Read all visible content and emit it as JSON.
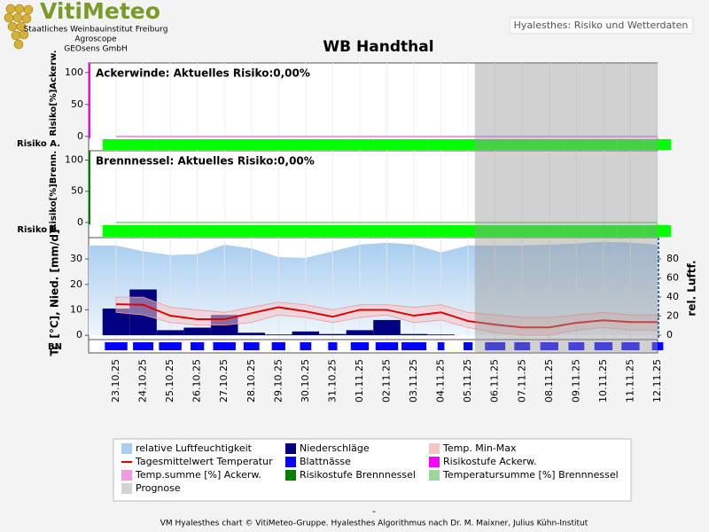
{
  "header": {
    "logo": "VitiMeteo",
    "institutes": [
      "Staatliches Weinbauinstitut Freiburg",
      "Agroscope",
      "GEOsens GmbH"
    ],
    "button": "Hyalesthes: Risiko und Wetterdaten",
    "title": "WB Handthal"
  },
  "chart_data": [
    {
      "type": "risk",
      "title": "Ackerwinde: Aktuelles Risiko:0,00%",
      "ylabel": "Risiko[%]Ackerw.",
      "strip_label": "Risiko A.",
      "strip_color": "#00ff00",
      "ylim": [
        -3,
        115
      ],
      "yticks": [
        0,
        50,
        100
      ],
      "series": [
        {
          "name": "Risikostufe Ackerw.",
          "color": "#ff00ff",
          "values": [
            0,
            0,
            0,
            0,
            0,
            0,
            0,
            0,
            0,
            0,
            0,
            0,
            0,
            0,
            0,
            0,
            0,
            0,
            0,
            0,
            0
          ]
        },
        {
          "name": "Temp.summe [%] Ackerw.",
          "color": "#f49ae0",
          "values": [
            0,
            0,
            0,
            0,
            0,
            0,
            0,
            0,
            0,
            0,
            0,
            0,
            0,
            0,
            0,
            0,
            0,
            0,
            0,
            0,
            0
          ]
        }
      ]
    },
    {
      "type": "risk",
      "title": "Brennnessel: Aktuelles Risiko:0,00%",
      "ylabel": "Risiko[%]Brenn.",
      "strip_label": "Risiko B.",
      "strip_color": "#00ff00",
      "ylim": [
        -3,
        115
      ],
      "yticks": [
        0,
        50,
        100
      ],
      "series": [
        {
          "name": "Risikostufe Brennnessel",
          "color": "#008000",
          "values": [
            0,
            0,
            0,
            0,
            0,
            0,
            0,
            0,
            0,
            0,
            0,
            0,
            0,
            0,
            0,
            0,
            0,
            0,
            0,
            0,
            0
          ]
        },
        {
          "name": "Temperatursumme [%] Brennnessel",
          "color": "#9cd89c",
          "values": [
            0,
            0,
            0,
            0,
            0,
            0,
            0,
            0,
            0,
            0,
            0,
            0,
            0,
            0,
            0,
            0,
            0,
            0,
            0,
            0,
            0
          ]
        }
      ]
    },
    {
      "type": "weather",
      "ylabel": "Tr. [°C], Nied. [mm/d]",
      "y2label": "rel. Luftf.",
      "strip_label": "BN",
      "categories": [
        "23.10.25",
        "24.10.25",
        "25.10.25",
        "26.10.25",
        "27.10.25",
        "28.10.25",
        "29.10.25",
        "30.10.25",
        "31.10.25",
        "01.11.25",
        "02.11.25",
        "03.11.25",
        "04.11.25",
        "05.11.25",
        "06.11.25",
        "07.11.25",
        "08.11.25",
        "09.11.25",
        "10.11.25",
        "11.11.25",
        "12.11.25"
      ],
      "ylim": [
        -1.7,
        38.4
      ],
      "yticks": [
        0,
        10,
        20,
        30
      ],
      "y2lim": [
        -4.7,
        102.3
      ],
      "y2ticks": [
        0,
        20,
        40,
        60,
        80
      ],
      "series": [
        {
          "name": "relative Luftfeuchtigkeit",
          "kind": "area",
          "axis": "y2",
          "color": "#a8cdf0",
          "values": [
            94,
            88,
            84,
            85,
            95,
            91,
            82,
            81,
            88,
            95,
            97,
            95,
            87,
            94,
            94,
            94,
            95,
            96,
            98,
            97,
            95
          ]
        },
        {
          "name": "Niederschläge",
          "kind": "bar",
          "color": "#000080",
          "values": [
            10.5,
            18,
            2,
            3,
            8,
            1,
            0.3,
            1.5,
            0.5,
            2,
            6,
            0.5,
            0.3,
            0,
            0,
            0,
            0,
            0,
            0,
            0,
            0
          ]
        },
        {
          "name": "Temp. Min-Max",
          "kind": "band",
          "color": "#f6c5c5",
          "values": [
            15,
            15,
            11,
            10,
            9,
            11,
            13,
            12,
            10,
            12,
            12,
            11,
            12,
            9,
            8,
            7,
            7,
            8,
            9,
            8,
            8
          ],
          "min": [
            9,
            8,
            5,
            4,
            4,
            5,
            8,
            7,
            5,
            7,
            8,
            5,
            6,
            3,
            1,
            0,
            0,
            2,
            3,
            2,
            2
          ]
        },
        {
          "name": "Tagesmittelwert Temperatur",
          "kind": "line",
          "color": "#e00000",
          "values": [
            12.2,
            12,
            7.7,
            6.3,
            6.3,
            8.7,
            11,
            9.4,
            7.3,
            10,
            10,
            7.7,
            9,
            5.6,
            4.2,
            3.1,
            3.1,
            4.9,
            5.9,
            5.2,
            5.2
          ]
        },
        {
          "name": "Blattnässe",
          "kind": "strip",
          "color": "#0000ff",
          "values": [
            20,
            18,
            20,
            12,
            20,
            14,
            12,
            10,
            8,
            16,
            20,
            22,
            6,
            8,
            18,
            14,
            16,
            14,
            16,
            16,
            10
          ]
        }
      ],
      "prognosis": {
        "name": "Prognose",
        "color": "#d3d3d3",
        "from": "05.11.25"
      }
    }
  ],
  "separator": "-",
  "footer": "VM Hyalesthes chart © VitiMeteo-Gruppe. Hyalesthes Algorithmus nach Dr. M. Maixner, Julius Kühn-Institut"
}
